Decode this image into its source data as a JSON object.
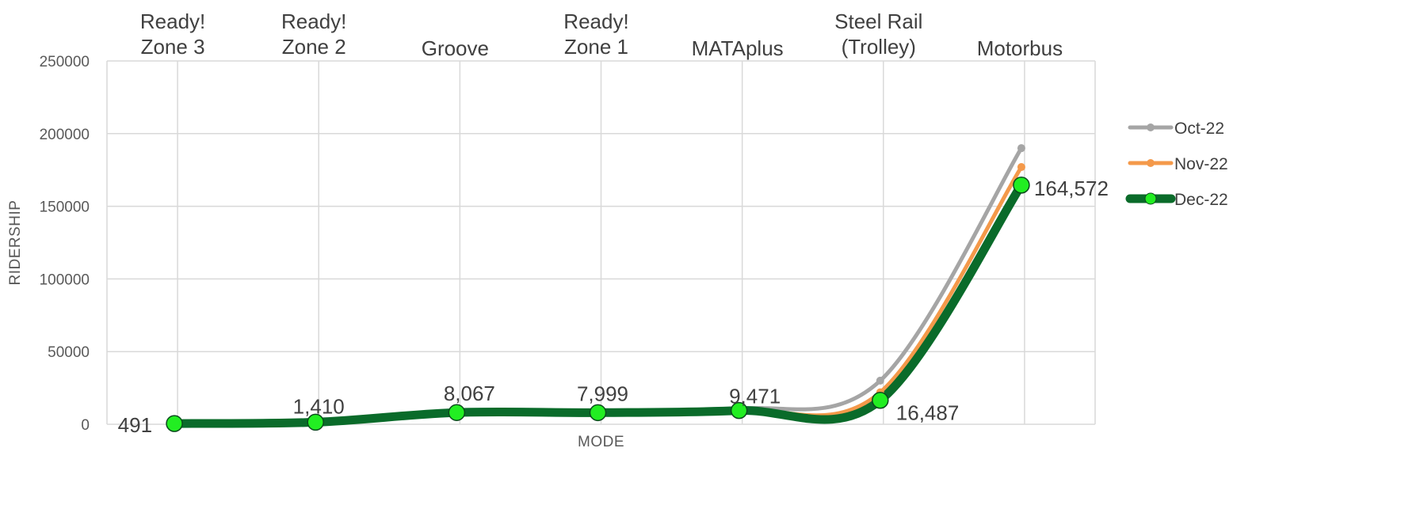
{
  "chart_data": {
    "type": "line",
    "title": "",
    "xlabel": "MODE",
    "ylabel": "RIDERSHIP",
    "ylim": [
      0,
      250000
    ],
    "yticks": [
      "0",
      "50000",
      "100000",
      "150000",
      "200000",
      "250000"
    ],
    "categories": [
      [
        "Ready!",
        "Zone 3"
      ],
      [
        "Ready!",
        "Zone 2"
      ],
      [
        "Groove"
      ],
      [
        "Ready!",
        "Zone 1"
      ],
      [
        "MATAplus"
      ],
      [
        "Steel Rail",
        "(Trolley)"
      ],
      [
        "Motorbus"
      ]
    ],
    "grid": true,
    "legend_position": "right",
    "series": [
      {
        "name": "Oct-22",
        "color": "#a5a5a5",
        "values": [
          500,
          1500,
          7800,
          8200,
          10500,
          30000,
          190000
        ]
      },
      {
        "name": "Nov-22",
        "color": "#f4994a",
        "values": [
          480,
          1450,
          7600,
          7900,
          9600,
          22000,
          177000
        ]
      },
      {
        "name": "Dec-22",
        "color": "#0a6b2a",
        "marker_color": "#22ee22",
        "values": [
          491,
          1410,
          8067,
          7999,
          9471,
          16487,
          164572
        ],
        "data_labels": [
          "491",
          "1,410",
          "8,067",
          "7,999",
          "9,471",
          "16,487",
          "164,572"
        ]
      }
    ]
  }
}
